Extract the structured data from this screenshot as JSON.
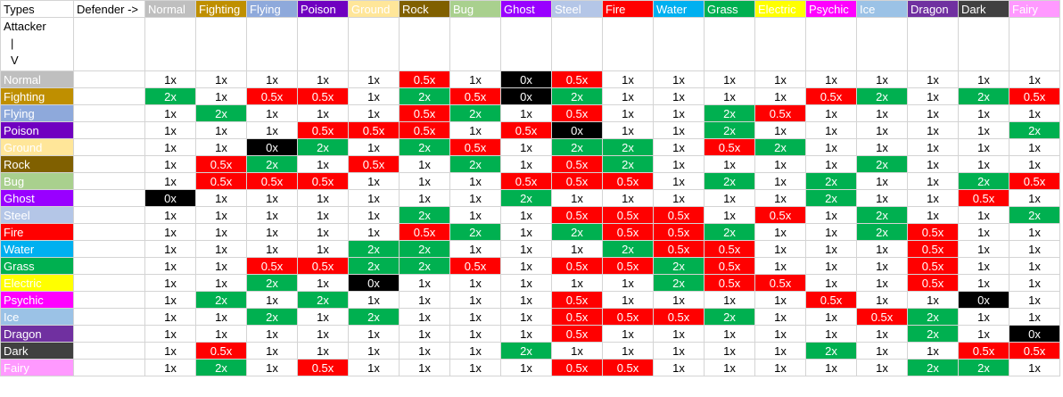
{
  "header": {
    "corner": "Types",
    "defender_label": "Defender ->",
    "attacker_label": [
      "Attacker",
      "|",
      "V"
    ]
  },
  "types": [
    {
      "name": "Normal",
      "color": "#bfbfbf"
    },
    {
      "name": "Fighting",
      "color": "#bf8f00"
    },
    {
      "name": "Flying",
      "color": "#8ea9db"
    },
    {
      "name": "Poison",
      "color": "#7000c0"
    },
    {
      "name": "Ground",
      "color": "#ffe699"
    },
    {
      "name": "Rock",
      "color": "#806000"
    },
    {
      "name": "Bug",
      "color": "#a9d08e"
    },
    {
      "name": "Ghost",
      "color": "#9900ff"
    },
    {
      "name": "Steel",
      "color": "#b4c6e7"
    },
    {
      "name": "Fire",
      "color": "#ff0000"
    },
    {
      "name": "Water",
      "color": "#00b0f0"
    },
    {
      "name": "Grass",
      "color": "#00b050"
    },
    {
      "name": "Electric",
      "color": "#ffff00"
    },
    {
      "name": "Psychic",
      "color": "#ff00ff"
    },
    {
      "name": "Ice",
      "color": "#9bc2e6"
    },
    {
      "name": "Dragon",
      "color": "#7030a0"
    },
    {
      "name": "Dark",
      "color": "#404040"
    },
    {
      "name": "Fairy",
      "color": "#ff99ff"
    }
  ],
  "effect_colors": {
    "2x": {
      "fill": "#00b050",
      "text": "#ffffff"
    },
    "0.5x": {
      "fill": "#ff0000",
      "text": "#ffffff"
    },
    "0x": {
      "fill": "#000000",
      "text": "#ffffff"
    }
  },
  "table": {
    "rows": [
      [
        "1x",
        "1x",
        "1x",
        "1x",
        "1x",
        "0.5x",
        "1x",
        "0x",
        "0.5x",
        "1x",
        "1x",
        "1x",
        "1x",
        "1x",
        "1x",
        "1x",
        "1x",
        "1x"
      ],
      [
        "2x",
        "1x",
        "0.5x",
        "0.5x",
        "1x",
        "2x",
        "0.5x",
        "0x",
        "2x",
        "1x",
        "1x",
        "1x",
        "1x",
        "0.5x",
        "2x",
        "1x",
        "2x",
        "0.5x"
      ],
      [
        "1x",
        "2x",
        "1x",
        "1x",
        "1x",
        "0.5x",
        "2x",
        "1x",
        "0.5x",
        "1x",
        "1x",
        "2x",
        "0.5x",
        "1x",
        "1x",
        "1x",
        "1x",
        "1x"
      ],
      [
        "1x",
        "1x",
        "1x",
        "0.5x",
        "0.5x",
        "0.5x",
        "1x",
        "0.5x",
        "0x",
        "1x",
        "1x",
        "2x",
        "1x",
        "1x",
        "1x",
        "1x",
        "1x",
        "2x"
      ],
      [
        "1x",
        "1x",
        "0x",
        "2x",
        "1x",
        "2x",
        "0.5x",
        "1x",
        "2x",
        "2x",
        "1x",
        "0.5x",
        "2x",
        "1x",
        "1x",
        "1x",
        "1x",
        "1x"
      ],
      [
        "1x",
        "0.5x",
        "2x",
        "1x",
        "0.5x",
        "1x",
        "2x",
        "1x",
        "0.5x",
        "2x",
        "1x",
        "1x",
        "1x",
        "1x",
        "2x",
        "1x",
        "1x",
        "1x"
      ],
      [
        "1x",
        "0.5x",
        "0.5x",
        "0.5x",
        "1x",
        "1x",
        "1x",
        "0.5x",
        "0.5x",
        "0.5x",
        "1x",
        "2x",
        "1x",
        "2x",
        "1x",
        "1x",
        "2x",
        "0.5x"
      ],
      [
        "0x",
        "1x",
        "1x",
        "1x",
        "1x",
        "1x",
        "1x",
        "2x",
        "1x",
        "1x",
        "1x",
        "1x",
        "1x",
        "2x",
        "1x",
        "1x",
        "0.5x",
        "1x"
      ],
      [
        "1x",
        "1x",
        "1x",
        "1x",
        "1x",
        "2x",
        "1x",
        "1x",
        "0.5x",
        "0.5x",
        "0.5x",
        "1x",
        "0.5x",
        "1x",
        "2x",
        "1x",
        "1x",
        "2x"
      ],
      [
        "1x",
        "1x",
        "1x",
        "1x",
        "1x",
        "0.5x",
        "2x",
        "1x",
        "2x",
        "0.5x",
        "0.5x",
        "2x",
        "1x",
        "1x",
        "2x",
        "0.5x",
        "1x",
        "1x"
      ],
      [
        "1x",
        "1x",
        "1x",
        "1x",
        "2x",
        "2x",
        "1x",
        "1x",
        "1x",
        "2x",
        "0.5x",
        "0.5x",
        "1x",
        "1x",
        "1x",
        "0.5x",
        "1x",
        "1x"
      ],
      [
        "1x",
        "1x",
        "0.5x",
        "0.5x",
        "2x",
        "2x",
        "0.5x",
        "1x",
        "0.5x",
        "0.5x",
        "2x",
        "0.5x",
        "1x",
        "1x",
        "1x",
        "0.5x",
        "1x",
        "1x"
      ],
      [
        "1x",
        "1x",
        "2x",
        "1x",
        "0x",
        "1x",
        "1x",
        "1x",
        "1x",
        "1x",
        "2x",
        "0.5x",
        "0.5x",
        "1x",
        "1x",
        "0.5x",
        "1x",
        "1x"
      ],
      [
        "1x",
        "2x",
        "1x",
        "2x",
        "1x",
        "1x",
        "1x",
        "1x",
        "0.5x",
        "1x",
        "1x",
        "1x",
        "1x",
        "0.5x",
        "1x",
        "1x",
        "0x",
        "1x"
      ],
      [
        "1x",
        "1x",
        "2x",
        "1x",
        "2x",
        "1x",
        "1x",
        "1x",
        "0.5x",
        "0.5x",
        "0.5x",
        "2x",
        "1x",
        "1x",
        "0.5x",
        "2x",
        "1x",
        "1x"
      ],
      [
        "1x",
        "1x",
        "1x",
        "1x",
        "1x",
        "1x",
        "1x",
        "1x",
        "0.5x",
        "1x",
        "1x",
        "1x",
        "1x",
        "1x",
        "1x",
        "2x",
        "1x",
        "0x"
      ],
      [
        "1x",
        "0.5x",
        "1x",
        "1x",
        "1x",
        "1x",
        "1x",
        "2x",
        "1x",
        "1x",
        "1x",
        "1x",
        "1x",
        "2x",
        "1x",
        "1x",
        "0.5x",
        "0.5x"
      ],
      [
        "1x",
        "2x",
        "1x",
        "0.5x",
        "1x",
        "1x",
        "1x",
        "1x",
        "0.5x",
        "0.5x",
        "1x",
        "1x",
        "1x",
        "1x",
        "1x",
        "2x",
        "2x",
        "1x"
      ]
    ]
  }
}
